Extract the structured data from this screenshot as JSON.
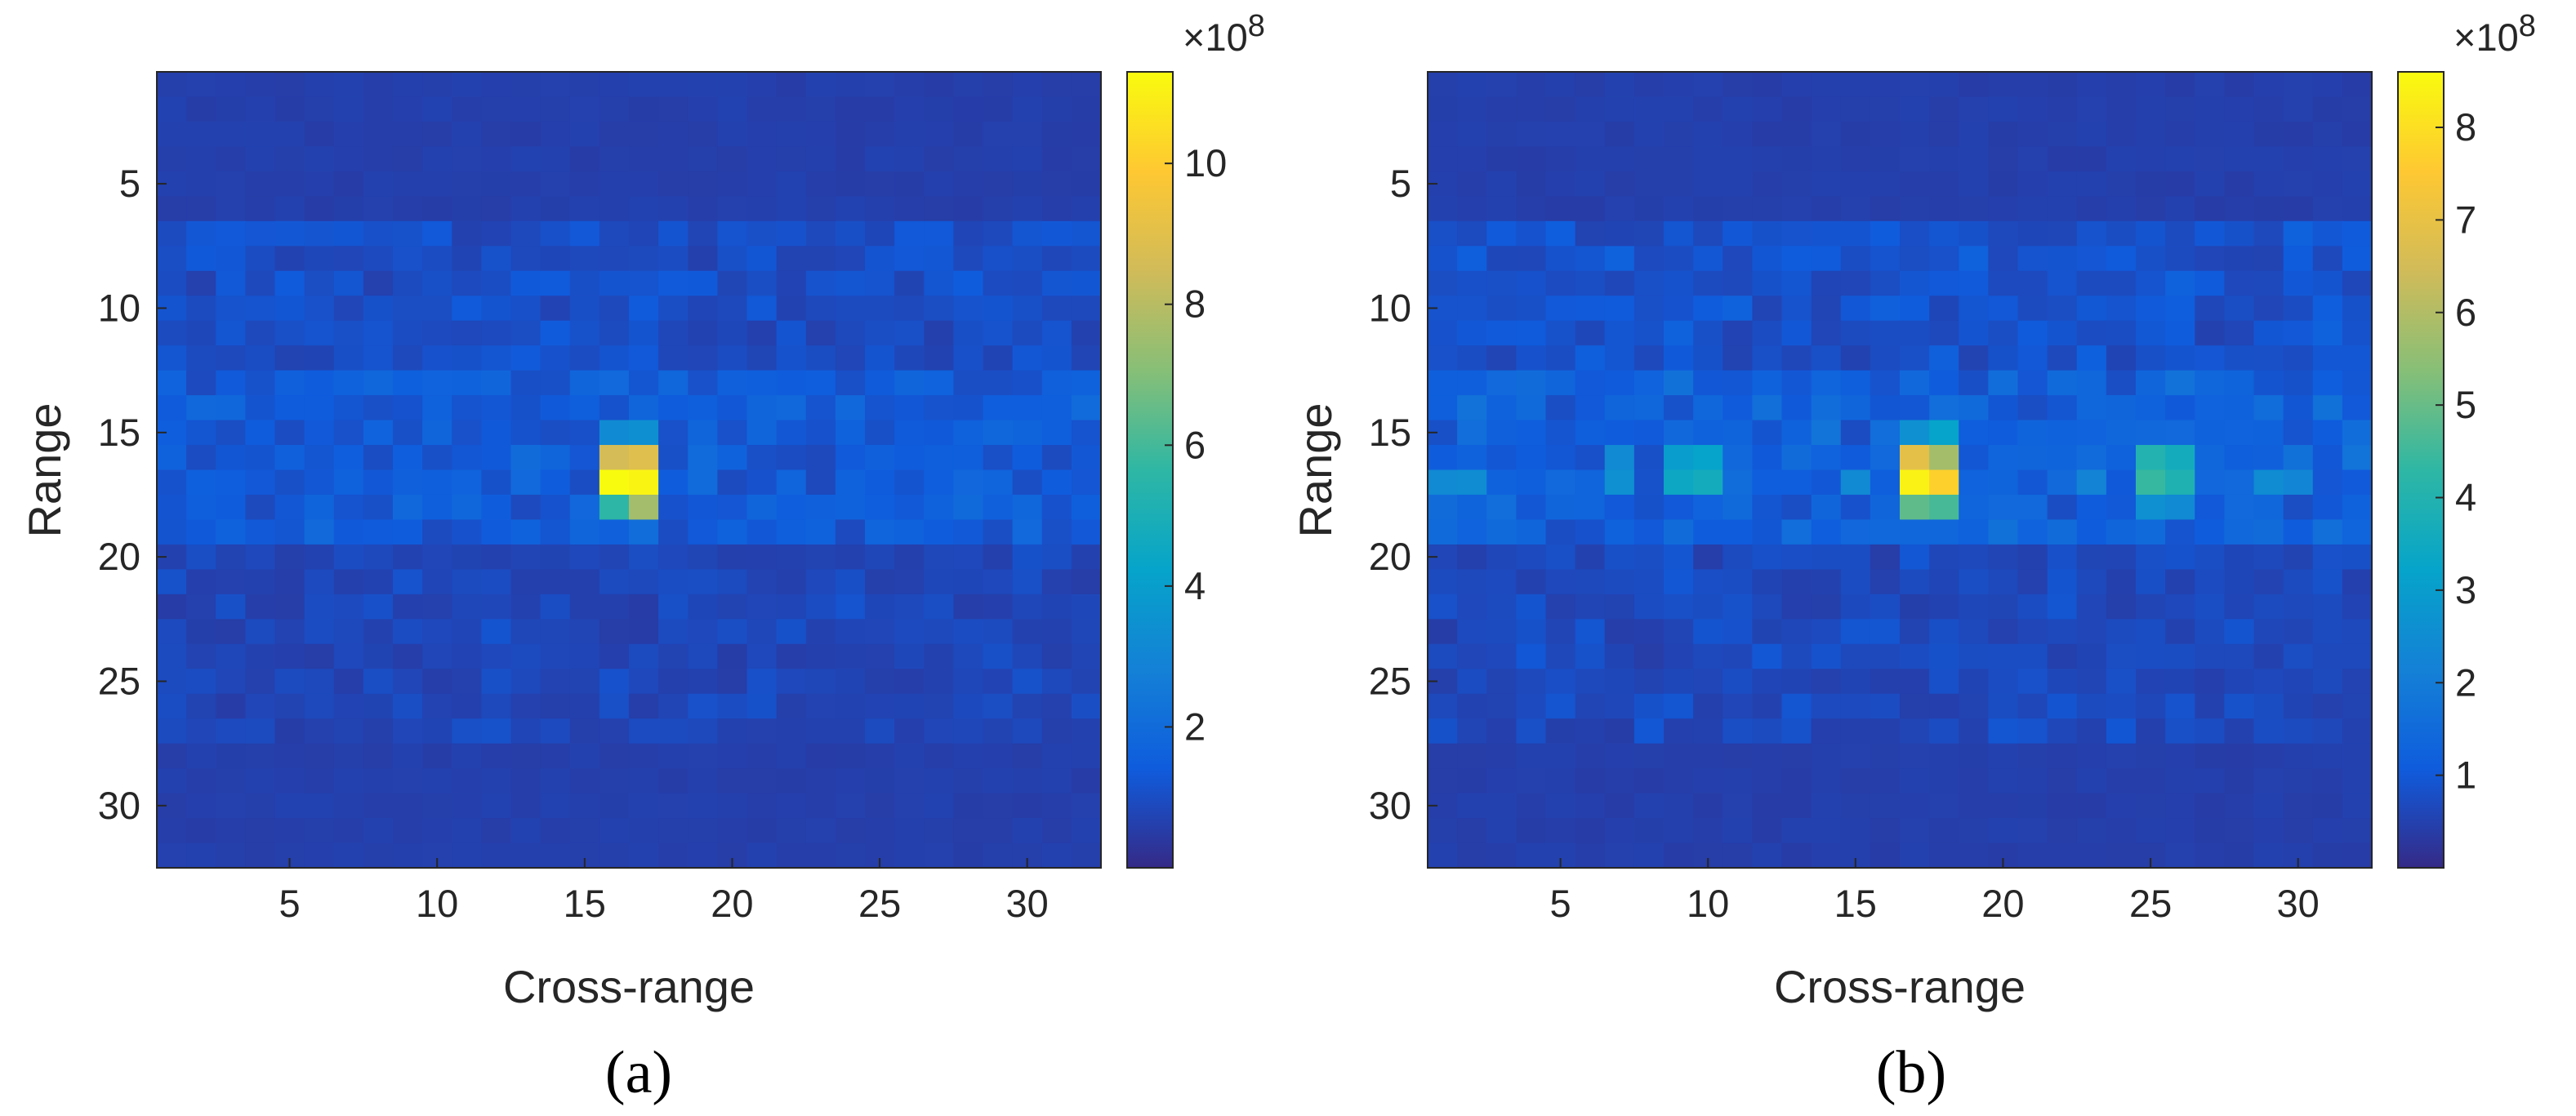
{
  "chart_data": [
    {
      "type": "heatmap",
      "panel_label": "(a)",
      "xlabel": "Cross-range",
      "ylabel": "Range",
      "x_range": [
        1,
        32
      ],
      "y_range": [
        1,
        32
      ],
      "xticks": [
        5,
        10,
        15,
        20,
        25,
        30
      ],
      "yticks": [
        5,
        10,
        15,
        20,
        25,
        30
      ],
      "y_reversed": true,
      "colormap": "parula",
      "colorbar": {
        "min": 0,
        "max": 11.3,
        "ticks": [
          2,
          4,
          6,
          8,
          10
        ],
        "exponent_label": "×10",
        "exponent_power": "8"
      },
      "background_value": 0.6,
      "peaks": [
        {
          "x": 16,
          "y": 15,
          "value": 3.2
        },
        {
          "x": 17,
          "y": 15,
          "value": 3.4
        },
        {
          "x": 16,
          "y": 16,
          "value": 8.6
        },
        {
          "x": 17,
          "y": 16,
          "value": 8.9
        },
        {
          "x": 16,
          "y": 17,
          "value": 11.3
        },
        {
          "x": 17,
          "y": 17,
          "value": 11.1
        },
        {
          "x": 16,
          "y": 18,
          "value": 5.6
        },
        {
          "x": 17,
          "y": 18,
          "value": 7.6
        }
      ],
      "clutter_bands": [
        {
          "y_from": 13,
          "y_to": 19,
          "level": 1.7
        },
        {
          "y_from": 7,
          "y_to": 12,
          "level": 1.25
        },
        {
          "y_from": 20,
          "y_to": 27,
          "level": 0.95
        }
      ]
    },
    {
      "type": "heatmap",
      "panel_label": "(b)",
      "xlabel": "Cross-range",
      "ylabel": "Range",
      "x_range": [
        1,
        32
      ],
      "y_range": [
        1,
        32
      ],
      "xticks": [
        5,
        10,
        15,
        20,
        25,
        30
      ],
      "yticks": [
        5,
        10,
        15,
        20,
        25,
        30
      ],
      "y_reversed": true,
      "colormap": "parula",
      "colorbar": {
        "min": 0,
        "max": 8.6,
        "ticks": [
          1,
          2,
          3,
          4,
          5,
          6,
          7,
          8
        ],
        "exponent_label": "×10",
        "exponent_power": "8"
      },
      "background_value": 0.45,
      "peaks": [
        {
          "x": 17,
          "y": 15,
          "value": 2.6
        },
        {
          "x": 18,
          "y": 15,
          "value": 3.2
        },
        {
          "x": 17,
          "y": 16,
          "value": 6.9
        },
        {
          "x": 18,
          "y": 16,
          "value": 5.8
        },
        {
          "x": 17,
          "y": 17,
          "value": 8.4
        },
        {
          "x": 18,
          "y": 17,
          "value": 7.7
        },
        {
          "x": 17,
          "y": 18,
          "value": 4.9
        },
        {
          "x": 18,
          "y": 18,
          "value": 4.6
        },
        {
          "x": 25,
          "y": 16,
          "value": 4.0
        },
        {
          "x": 26,
          "y": 16,
          "value": 3.6
        },
        {
          "x": 25,
          "y": 17,
          "value": 4.4
        },
        {
          "x": 26,
          "y": 17,
          "value": 3.9
        },
        {
          "x": 25,
          "y": 18,
          "value": 2.6
        },
        {
          "x": 26,
          "y": 18,
          "value": 2.4
        },
        {
          "x": 9,
          "y": 16,
          "value": 3.0
        },
        {
          "x": 10,
          "y": 16,
          "value": 3.2
        },
        {
          "x": 9,
          "y": 17,
          "value": 3.4
        },
        {
          "x": 10,
          "y": 17,
          "value": 3.6
        },
        {
          "x": 7,
          "y": 16,
          "value": 2.4
        },
        {
          "x": 7,
          "y": 17,
          "value": 2.6
        },
        {
          "x": 1,
          "y": 17,
          "value": 2.4
        },
        {
          "x": 2,
          "y": 17,
          "value": 2.5
        },
        {
          "x": 29,
          "y": 17,
          "value": 2.5
        },
        {
          "x": 30,
          "y": 17,
          "value": 2.3
        },
        {
          "x": 15,
          "y": 17,
          "value": 2.4
        },
        {
          "x": 23,
          "y": 17,
          "value": 2.2
        }
      ],
      "clutter_bands": [
        {
          "y_from": 13,
          "y_to": 19,
          "level": 1.45
        },
        {
          "y_from": 7,
          "y_to": 12,
          "level": 1.05
        },
        {
          "y_from": 20,
          "y_to": 27,
          "level": 0.8
        }
      ]
    }
  ]
}
